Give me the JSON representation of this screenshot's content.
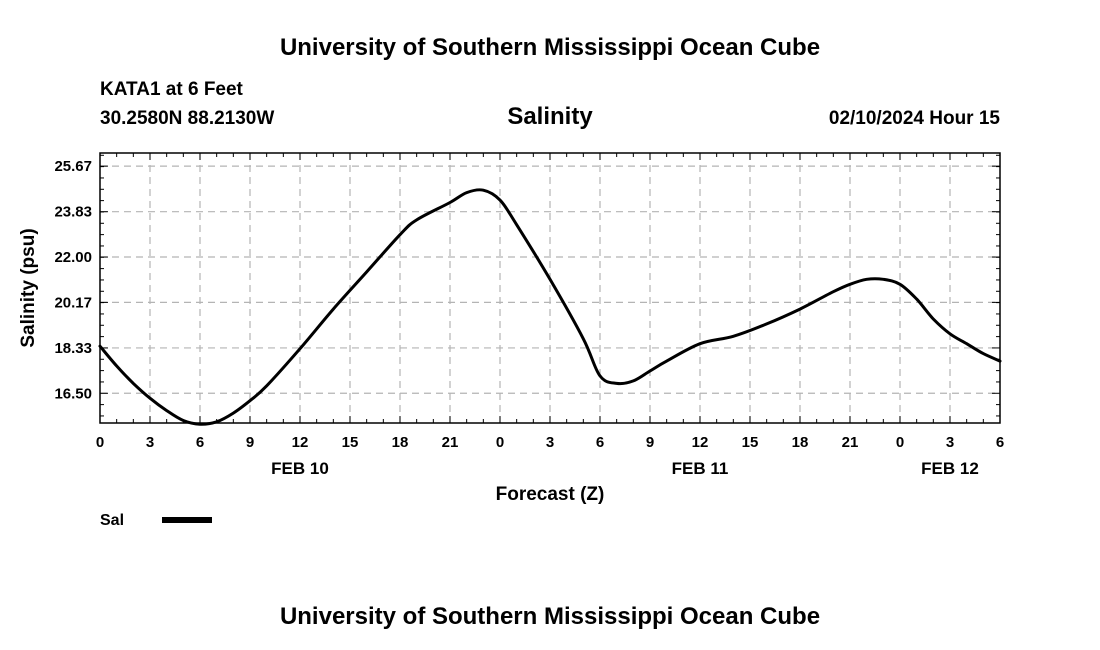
{
  "header": {
    "title": "University of Southern Mississippi Ocean Cube",
    "station": "KATA1 at 6 Feet",
    "coords": "30.2580N  88.2130W",
    "chart_title": "Salinity",
    "datetime": "02/10/2024 Hour 15"
  },
  "footer": {
    "title": "University of Southern Mississippi Ocean Cube"
  },
  "legend": {
    "label": "Sal",
    "color": "#000000"
  },
  "chart_data": {
    "type": "line",
    "title": "Salinity",
    "xlabel": "Forecast (Z)",
    "ylabel": "Salinity (psu)",
    "xlim": [
      "2024-02-10T00:00Z",
      "2024-02-12T06:00Z"
    ],
    "ylim": [
      15.3,
      26.2
    ],
    "y_ticks": [
      "16.50",
      "18.33",
      "20.17",
      "22.00",
      "23.83",
      "25.67"
    ],
    "x_ticks": [
      "0",
      "3",
      "6",
      "9",
      "12",
      "15",
      "18",
      "21",
      "0",
      "3",
      "6",
      "9",
      "12",
      "15",
      "18",
      "21",
      "0",
      "3",
      "6"
    ],
    "date_labels": [
      {
        "label": "FEB 10",
        "x": "2024-02-10T12:00Z"
      },
      {
        "label": "FEB 11",
        "x": "2024-02-11T12:00Z"
      },
      {
        "label": "FEB 12",
        "x": "2024-02-12T03:00Z"
      }
    ],
    "grid": true,
    "legend_position": "bottom-left",
    "series": [
      {
        "name": "Sal",
        "color": "#000000",
        "x": [
          "2024-02-10T00:00Z",
          "2024-02-10T01:00Z",
          "2024-02-10T02:00Z",
          "2024-02-10T03:00Z",
          "2024-02-10T04:00Z",
          "2024-02-10T05:00Z",
          "2024-02-10T06:00Z",
          "2024-02-10T07:00Z",
          "2024-02-10T08:00Z",
          "2024-02-10T09:00Z",
          "2024-02-10T10:00Z",
          "2024-02-10T12:00Z",
          "2024-02-10T14:00Z",
          "2024-02-10T16:00Z",
          "2024-02-10T18:00Z",
          "2024-02-10T19:00Z",
          "2024-02-10T21:00Z",
          "2024-02-10T22:00Z",
          "2024-02-10T23:00Z",
          "2024-02-11T00:00Z",
          "2024-02-11T01:00Z",
          "2024-02-11T03:00Z",
          "2024-02-11T05:00Z",
          "2024-02-11T06:00Z",
          "2024-02-11T07:00Z",
          "2024-02-11T08:00Z",
          "2024-02-11T09:00Z",
          "2024-02-11T10:00Z",
          "2024-02-11T12:00Z",
          "2024-02-11T14:00Z",
          "2024-02-11T16:00Z",
          "2024-02-11T18:00Z",
          "2024-02-11T20:00Z",
          "2024-02-11T21:00Z",
          "2024-02-11T22:00Z",
          "2024-02-11T23:00Z",
          "2024-02-12T00:00Z",
          "2024-02-12T01:00Z",
          "2024-02-12T02:00Z",
          "2024-02-12T03:00Z",
          "2024-02-12T04:00Z",
          "2024-02-12T05:00Z",
          "2024-02-12T06:00Z"
        ],
        "values": [
          18.4,
          17.6,
          16.9,
          16.3,
          15.8,
          15.4,
          15.25,
          15.35,
          15.7,
          16.2,
          16.8,
          18.3,
          19.9,
          21.4,
          22.9,
          23.5,
          24.2,
          24.6,
          24.7,
          24.3,
          23.3,
          21.1,
          18.7,
          17.2,
          16.9,
          17.0,
          17.4,
          17.8,
          18.5,
          18.8,
          19.3,
          19.9,
          20.6,
          20.9,
          21.1,
          21.1,
          20.9,
          20.3,
          19.5,
          18.9,
          18.5,
          18.1,
          17.8
        ]
      }
    ]
  }
}
